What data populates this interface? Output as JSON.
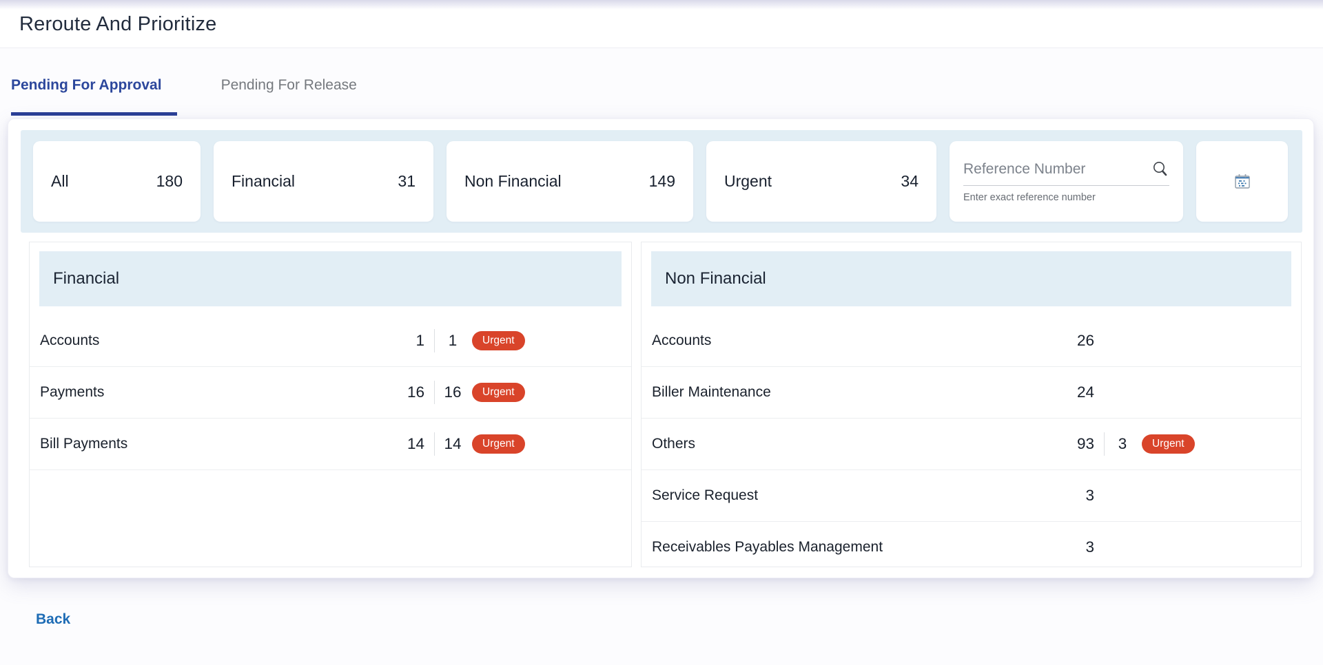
{
  "page": {
    "title": "Reroute And Prioritize"
  },
  "tabs": [
    {
      "label": "Pending For Approval",
      "active": true
    },
    {
      "label": "Pending For Release",
      "active": false
    }
  ],
  "filters": {
    "cards": [
      {
        "label": "All",
        "count": "180"
      },
      {
        "label": "Financial",
        "count": "31"
      },
      {
        "label": "Non Financial",
        "count": "149"
      },
      {
        "label": "Urgent",
        "count": "34"
      }
    ],
    "reference": {
      "placeholder": "Reference Number",
      "value": "",
      "helper": "Enter exact reference number",
      "icon": "search-icon"
    },
    "calendar_icon": "calendar-icon"
  },
  "panels": [
    {
      "title": "Financial",
      "rows": [
        {
          "label": "Accounts",
          "count": "1",
          "urgent_count": "1",
          "urgent_label": "Urgent"
        },
        {
          "label": "Payments",
          "count": "16",
          "urgent_count": "16",
          "urgent_label": "Urgent"
        },
        {
          "label": "Bill Payments",
          "count": "14",
          "urgent_count": "14",
          "urgent_label": "Urgent"
        }
      ]
    },
    {
      "title": "Non Financial",
      "rows": [
        {
          "label": "Accounts",
          "count": "26"
        },
        {
          "label": "Biller Maintenance",
          "count": "24"
        },
        {
          "label": "Others",
          "count": "93",
          "urgent_count": "3",
          "urgent_label": "Urgent"
        },
        {
          "label": "Service Request",
          "count": "3"
        },
        {
          "label": "Receivables Payables Management",
          "count": "3"
        }
      ]
    }
  ],
  "footer": {
    "back_label": "Back"
  },
  "colors": {
    "accent_tab_blue": "#2c479c",
    "link_blue": "#1e6cb5",
    "urgent_red": "#d9442a",
    "light_blue_bg": "#e2eef5"
  }
}
